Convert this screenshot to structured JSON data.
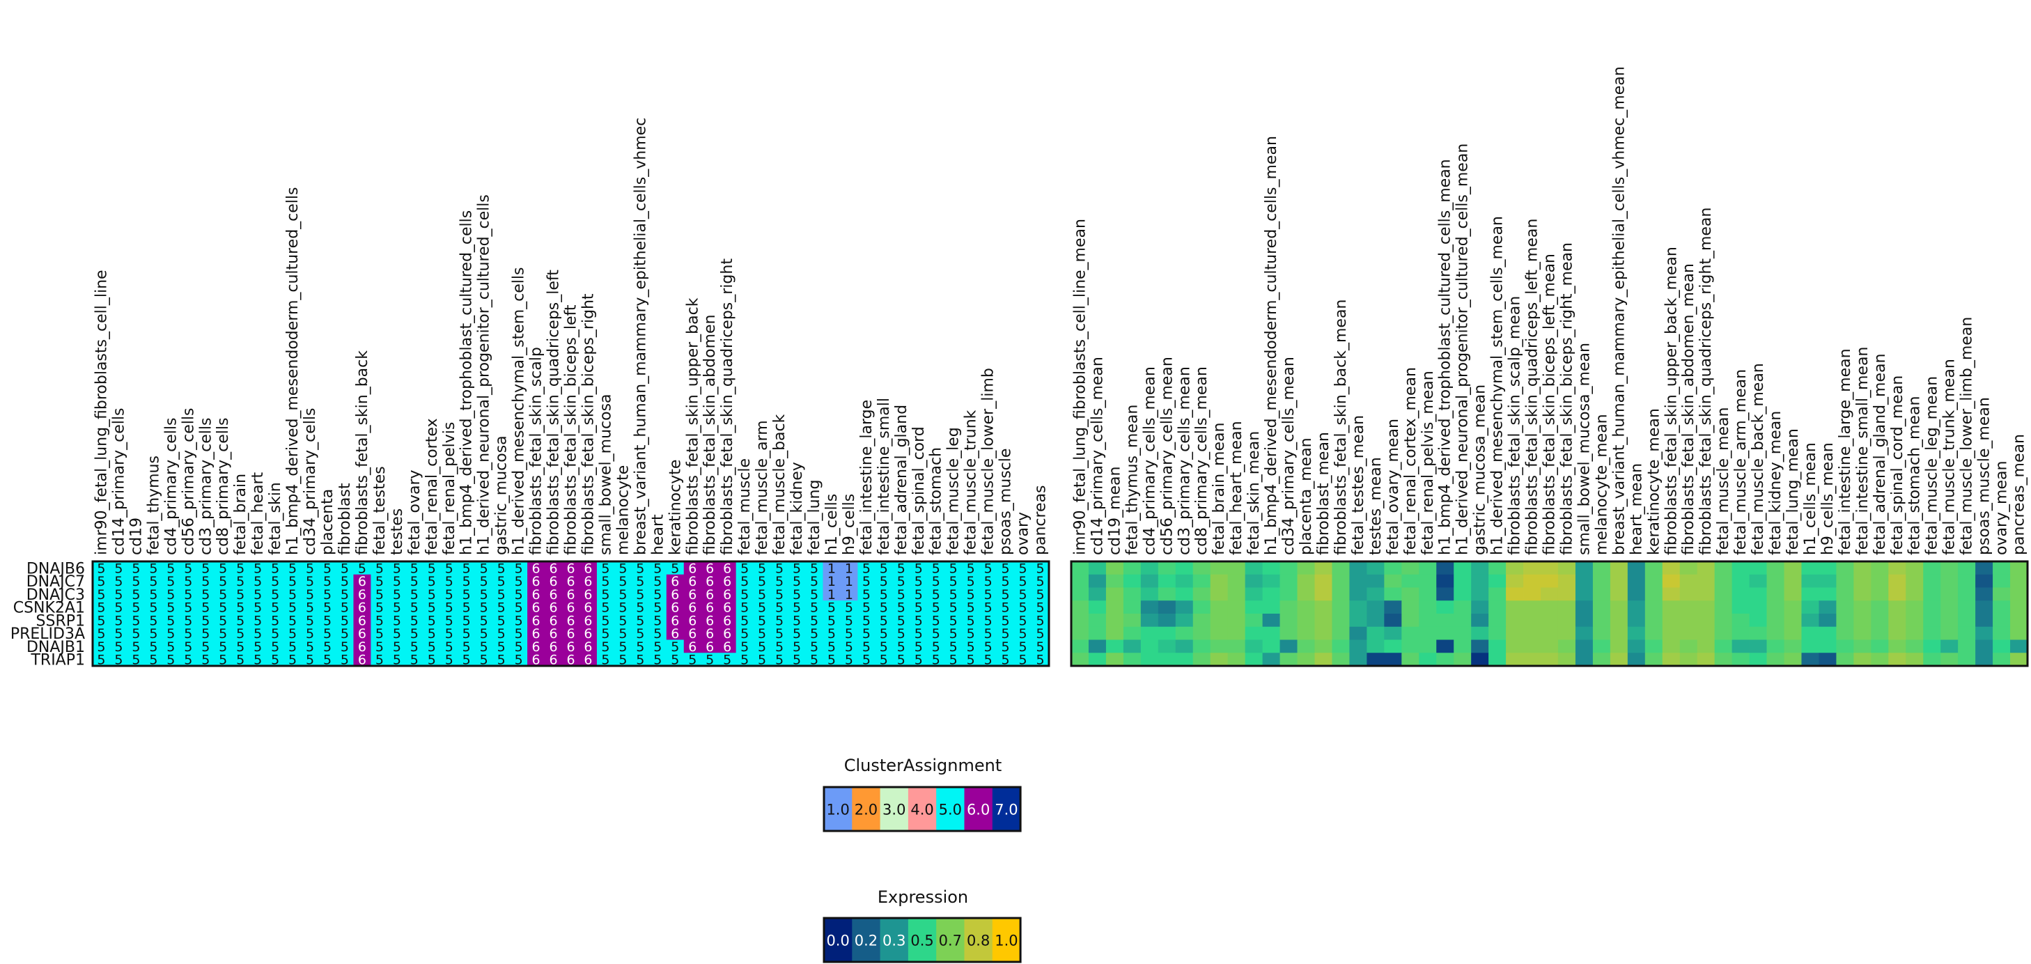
{
  "chart_data": [
    {
      "type": "heatmap",
      "title": "",
      "rows": [
        "DNAJB6",
        "DNAJC7",
        "DNAJC3",
        "CSNK2A1",
        "SSRP1",
        "PRELID3A",
        "DNAJB1",
        "TRIAP1"
      ],
      "columns": [
        "imr90_fetal_lung_fibroblasts_cell_line",
        "cd14_primary_cells",
        "cd19",
        "fetal_thymus",
        "cd4_primary_cells",
        "cd56_primary_cells",
        "cd3_primary_cells",
        "cd8_primary_cells",
        "fetal_brain",
        "fetal_heart",
        "fetal_skin",
        "h1_bmp4_derived_mesendoderm_cultured_cells",
        "cd34_primary_cells",
        "placenta",
        "fibroblast",
        "fibroblasts_fetal_skin_back",
        "fetal_testes",
        "testes",
        "fetal_ovary",
        "fetal_renal_cortex",
        "fetal_renal_pelvis",
        "h1_bmp4_derived_trophoblast_cultured_cells",
        "h1_derived_neuronal_progenitor_cultured_cells",
        "gastric_mucosa",
        "h1_derived_mesenchymal_stem_cells",
        "fibroblasts_fetal_skin_scalp",
        "fibroblasts_fetal_skin_quadriceps_left",
        "fibroblasts_fetal_skin_biceps_left",
        "fibroblasts_fetal_skin_biceps_right",
        "small_bowel_mucosa",
        "melanocyte",
        "breast_variant_human_mammary_epithelial_cells_vhmec",
        "heart",
        "keratinocyte",
        "fibroblasts_fetal_skin_upper_back",
        "fibroblasts_fetal_skin_abdomen",
        "fibroblasts_fetal_skin_quadriceps_right",
        "fetal_muscle",
        "fetal_muscle_arm",
        "fetal_muscle_back",
        "fetal_kidney",
        "fetal_lung",
        "h1_cells",
        "h9_cells",
        "fetal_intestine_large",
        "fetal_intestine_small",
        "fetal_adrenal_gland",
        "fetal_spinal_cord",
        "fetal_stomach",
        "fetal_muscle_leg",
        "fetal_muscle_trunk",
        "fetal_muscle_lower_limb",
        "psoas_muscle",
        "ovary",
        "pancreas"
      ],
      "cell_values": [
        [
          5,
          5,
          5,
          5,
          5,
          5,
          5,
          5,
          5,
          5,
          5,
          5,
          5,
          5,
          5,
          5,
          5,
          5,
          5,
          5,
          5,
          5,
          5,
          5,
          5,
          6,
          6,
          6,
          6,
          5,
          5,
          5,
          5,
          5,
          6,
          6,
          6,
          5,
          5,
          5,
          5,
          5,
          1,
          1,
          5,
          5,
          5,
          5,
          5,
          5,
          5,
          5,
          5,
          5,
          5
        ],
        [
          5,
          5,
          5,
          5,
          5,
          5,
          5,
          5,
          5,
          5,
          5,
          5,
          5,
          5,
          5,
          6,
          5,
          5,
          5,
          5,
          5,
          5,
          5,
          5,
          5,
          6,
          6,
          6,
          6,
          5,
          5,
          5,
          5,
          6,
          6,
          6,
          6,
          5,
          5,
          5,
          5,
          5,
          1,
          1,
          5,
          5,
          5,
          5,
          5,
          5,
          5,
          5,
          5,
          5,
          5
        ],
        [
          5,
          5,
          5,
          5,
          5,
          5,
          5,
          5,
          5,
          5,
          5,
          5,
          5,
          5,
          5,
          6,
          5,
          5,
          5,
          5,
          5,
          5,
          5,
          5,
          5,
          6,
          6,
          6,
          6,
          5,
          5,
          5,
          5,
          6,
          6,
          6,
          6,
          5,
          5,
          5,
          5,
          5,
          1,
          1,
          5,
          5,
          5,
          5,
          5,
          5,
          5,
          5,
          5,
          5,
          5
        ],
        [
          5,
          5,
          5,
          5,
          5,
          5,
          5,
          5,
          5,
          5,
          5,
          5,
          5,
          5,
          5,
          6,
          5,
          5,
          5,
          5,
          5,
          5,
          5,
          5,
          5,
          6,
          6,
          6,
          6,
          5,
          5,
          5,
          5,
          6,
          6,
          6,
          6,
          5,
          5,
          5,
          5,
          5,
          5,
          5,
          5,
          5,
          5,
          5,
          5,
          5,
          5,
          5,
          5,
          5,
          5
        ],
        [
          5,
          5,
          5,
          5,
          5,
          5,
          5,
          5,
          5,
          5,
          5,
          5,
          5,
          5,
          5,
          6,
          5,
          5,
          5,
          5,
          5,
          5,
          5,
          5,
          5,
          6,
          6,
          6,
          6,
          5,
          5,
          5,
          5,
          6,
          6,
          6,
          6,
          5,
          5,
          5,
          5,
          5,
          5,
          5,
          5,
          5,
          5,
          5,
          5,
          5,
          5,
          5,
          5,
          5,
          5
        ],
        [
          5,
          5,
          5,
          5,
          5,
          5,
          5,
          5,
          5,
          5,
          5,
          5,
          5,
          5,
          5,
          6,
          5,
          5,
          5,
          5,
          5,
          5,
          5,
          5,
          5,
          6,
          6,
          6,
          6,
          5,
          5,
          5,
          5,
          6,
          6,
          6,
          6,
          5,
          5,
          5,
          5,
          5,
          5,
          5,
          5,
          5,
          5,
          5,
          5,
          5,
          5,
          5,
          5,
          5,
          5
        ],
        [
          5,
          5,
          5,
          5,
          5,
          5,
          5,
          5,
          5,
          5,
          5,
          5,
          5,
          5,
          5,
          6,
          5,
          5,
          5,
          5,
          5,
          5,
          5,
          5,
          5,
          6,
          6,
          6,
          6,
          5,
          5,
          5,
          5,
          5,
          6,
          6,
          6,
          5,
          5,
          5,
          5,
          5,
          5,
          5,
          5,
          5,
          5,
          5,
          5,
          5,
          5,
          5,
          5,
          5,
          5
        ],
        [
          5,
          5,
          5,
          5,
          5,
          5,
          5,
          5,
          5,
          5,
          5,
          5,
          5,
          5,
          5,
          6,
          5,
          5,
          5,
          5,
          5,
          5,
          5,
          5,
          5,
          6,
          6,
          6,
          6,
          5,
          5,
          5,
          5,
          5,
          5,
          5,
          5,
          5,
          5,
          5,
          5,
          5,
          5,
          5,
          5,
          5,
          5,
          5,
          5,
          5,
          5,
          5,
          5,
          5,
          5
        ]
      ],
      "color_key": "ClusterAssignment"
    },
    {
      "type": "heatmap",
      "title": "",
      "rows": [
        "DNAJB6",
        "DNAJC7",
        "DNAJC3",
        "CSNK2A1",
        "SSRP1",
        "PRELID3A",
        "DNAJB1",
        "TRIAP1"
      ],
      "columns": [
        "imr90_fetal_lung_fibroblasts_cell_line_mean",
        "cd14_primary_cells_mean",
        "cd19_mean",
        "fetal_thymus_mean",
        "cd4_primary_cells_mean",
        "cd56_primary_cells_mean",
        "cd3_primary_cells_mean",
        "cd8_primary_cells_mean",
        "fetal_brain_mean",
        "fetal_heart_mean",
        "fetal_skin_mean",
        "h1_bmp4_derived_mesendoderm_cultured_cells_mean",
        "cd34_primary_cells_mean",
        "placenta_mean",
        "fibroblast_mean",
        "fibroblasts_fetal_skin_back_mean",
        "fetal_testes_mean",
        "testes_mean",
        "fetal_ovary_mean",
        "fetal_renal_cortex_mean",
        "fetal_renal_pelvis_mean",
        "h1_bmp4_derived_trophoblast_cultured_cells_mean",
        "h1_derived_neuronal_progenitor_cultured_cells_mean",
        "gastric_mucosa_mean",
        "h1_derived_mesenchymal_stem_cells_mean",
        "fibroblasts_fetal_skin_scalp_mean",
        "fibroblasts_fetal_skin_quadriceps_left_mean",
        "fibroblasts_fetal_skin_biceps_left_mean",
        "fibroblasts_fetal_skin_biceps_right_mean",
        "small_bowel_mucosa_mean",
        "melanocyte_mean",
        "breast_variant_human_mammary_epithelial_cells_vhmec_mean",
        "heart_mean",
        "keratinocyte_mean",
        "fibroblasts_fetal_skin_upper_back_mean",
        "fibroblasts_fetal_skin_abdomen_mean",
        "fibroblasts_fetal_skin_quadriceps_right_mean",
        "fetal_muscle_mean",
        "fetal_muscle_arm_mean",
        "fetal_muscle_back_mean",
        "fetal_kidney_mean",
        "fetal_lung_mean",
        "h1_cells_mean",
        "h9_cells_mean",
        "fetal_intestine_large_mean",
        "fetal_intestine_small_mean",
        "fetal_adrenal_gland_mean",
        "fetal_spinal_cord_mean",
        "fetal_stomach_mean",
        "fetal_muscle_leg_mean",
        "fetal_muscle_trunk_mean",
        "fetal_muscle_lower_limb_mean",
        "psoas_muscle_mean",
        "ovary_mean",
        "pancreas_mean"
      ],
      "cell_values": [
        [
          0.55,
          0.45,
          0.65,
          0.55,
          0.45,
          0.55,
          0.5,
          0.6,
          0.65,
          0.65,
          0.45,
          0.5,
          0.55,
          0.65,
          0.75,
          0.6,
          0.35,
          0.4,
          0.55,
          0.6,
          0.55,
          0.15,
          0.5,
          0.4,
          0.55,
          0.75,
          0.8,
          0.8,
          0.75,
          0.35,
          0.6,
          0.75,
          0.3,
          0.6,
          0.8,
          0.7,
          0.75,
          0.6,
          0.5,
          0.5,
          0.6,
          0.7,
          0.5,
          0.5,
          0.6,
          0.7,
          0.65,
          0.75,
          0.7,
          0.55,
          0.6,
          0.55,
          0.2,
          0.55,
          0.65
        ],
        [
          0.55,
          0.35,
          0.6,
          0.5,
          0.4,
          0.5,
          0.45,
          0.55,
          0.7,
          0.65,
          0.4,
          0.45,
          0.55,
          0.7,
          0.8,
          0.6,
          0.35,
          0.35,
          0.6,
          0.55,
          0.55,
          0.1,
          0.5,
          0.4,
          0.5,
          0.8,
          0.85,
          0.85,
          0.8,
          0.35,
          0.6,
          0.75,
          0.3,
          0.6,
          0.85,
          0.75,
          0.75,
          0.6,
          0.5,
          0.45,
          0.6,
          0.7,
          0.45,
          0.45,
          0.6,
          0.7,
          0.65,
          0.8,
          0.7,
          0.55,
          0.6,
          0.55,
          0.15,
          0.55,
          0.65
        ],
        [
          0.55,
          0.4,
          0.65,
          0.55,
          0.45,
          0.55,
          0.5,
          0.6,
          0.7,
          0.65,
          0.45,
          0.5,
          0.55,
          0.7,
          0.8,
          0.6,
          0.35,
          0.4,
          0.55,
          0.6,
          0.55,
          0.15,
          0.5,
          0.4,
          0.55,
          0.85,
          0.85,
          0.8,
          0.8,
          0.35,
          0.6,
          0.75,
          0.3,
          0.6,
          0.8,
          0.75,
          0.75,
          0.6,
          0.5,
          0.5,
          0.6,
          0.7,
          0.5,
          0.5,
          0.6,
          0.7,
          0.65,
          0.8,
          0.7,
          0.55,
          0.6,
          0.55,
          0.2,
          0.6,
          0.65
        ],
        [
          0.6,
          0.5,
          0.65,
          0.55,
          0.3,
          0.25,
          0.35,
          0.55,
          0.65,
          0.65,
          0.5,
          0.5,
          0.6,
          0.65,
          0.7,
          0.6,
          0.4,
          0.35,
          0.2,
          0.6,
          0.55,
          0.5,
          0.55,
          0.35,
          0.55,
          0.7,
          0.7,
          0.7,
          0.7,
          0.3,
          0.6,
          0.7,
          0.35,
          0.6,
          0.7,
          0.7,
          0.7,
          0.6,
          0.5,
          0.5,
          0.6,
          0.65,
          0.45,
          0.35,
          0.6,
          0.65,
          0.6,
          0.7,
          0.65,
          0.55,
          0.6,
          0.55,
          0.25,
          0.55,
          0.65
        ],
        [
          0.6,
          0.55,
          0.65,
          0.6,
          0.35,
          0.3,
          0.4,
          0.6,
          0.65,
          0.65,
          0.55,
          0.3,
          0.6,
          0.65,
          0.7,
          0.6,
          0.4,
          0.35,
          0.15,
          0.6,
          0.55,
          0.55,
          0.55,
          0.3,
          0.55,
          0.7,
          0.7,
          0.7,
          0.7,
          0.3,
          0.6,
          0.7,
          0.35,
          0.6,
          0.7,
          0.7,
          0.7,
          0.6,
          0.55,
          0.5,
          0.6,
          0.65,
          0.4,
          0.3,
          0.6,
          0.65,
          0.6,
          0.7,
          0.65,
          0.55,
          0.6,
          0.55,
          0.25,
          0.55,
          0.65
        ],
        [
          0.6,
          0.55,
          0.65,
          0.55,
          0.5,
          0.5,
          0.55,
          0.6,
          0.65,
          0.65,
          0.5,
          0.5,
          0.6,
          0.65,
          0.7,
          0.6,
          0.3,
          0.45,
          0.4,
          0.55,
          0.55,
          0.55,
          0.55,
          0.45,
          0.55,
          0.7,
          0.7,
          0.7,
          0.7,
          0.35,
          0.6,
          0.7,
          0.4,
          0.6,
          0.7,
          0.7,
          0.7,
          0.6,
          0.55,
          0.55,
          0.6,
          0.65,
          0.5,
          0.5,
          0.6,
          0.65,
          0.6,
          0.7,
          0.65,
          0.55,
          0.6,
          0.55,
          0.35,
          0.55,
          0.65
        ],
        [
          0.55,
          0.3,
          0.5,
          0.4,
          0.5,
          0.45,
          0.4,
          0.55,
          0.6,
          0.6,
          0.45,
          0.5,
          0.3,
          0.6,
          0.65,
          0.55,
          0.35,
          0.45,
          0.5,
          0.55,
          0.55,
          0.1,
          0.55,
          0.2,
          0.5,
          0.7,
          0.7,
          0.7,
          0.65,
          0.3,
          0.55,
          0.7,
          0.35,
          0.55,
          0.7,
          0.65,
          0.7,
          0.55,
          0.4,
          0.4,
          0.55,
          0.6,
          0.5,
          0.5,
          0.55,
          0.6,
          0.55,
          0.65,
          0.6,
          0.5,
          0.4,
          0.55,
          0.3,
          0.5,
          0.35
        ],
        [
          0.6,
          0.5,
          0.65,
          0.55,
          0.5,
          0.5,
          0.5,
          0.6,
          0.7,
          0.65,
          0.5,
          0.35,
          0.6,
          0.65,
          0.75,
          0.6,
          0.35,
          0.1,
          0.1,
          0.6,
          0.5,
          0.55,
          0.6,
          0.05,
          0.5,
          0.75,
          0.75,
          0.75,
          0.7,
          0.3,
          0.6,
          0.75,
          0.3,
          0.6,
          0.75,
          0.7,
          0.75,
          0.6,
          0.55,
          0.5,
          0.6,
          0.65,
          0.2,
          0.15,
          0.6,
          0.7,
          0.65,
          0.75,
          0.7,
          0.55,
          0.6,
          0.55,
          0.3,
          0.55,
          0.7
        ]
      ],
      "color_key": "Expression"
    }
  ],
  "legends": {
    "cluster": {
      "title": "ClusterAssignment",
      "labels": [
        "1.0",
        "2.0",
        "3.0",
        "4.0",
        "5.0",
        "6.0",
        "7.0"
      ],
      "colors": [
        "#6c9bf7",
        "#ff9933",
        "#ccf5c7",
        "#ff9999",
        "#00f5f5",
        "#9a009a",
        "#002d99"
      ]
    },
    "expression": {
      "title": "Expression",
      "labels": [
        "0.0",
        "0.2",
        "0.3",
        "0.5",
        "0.7",
        "0.8",
        "1.0"
      ],
      "colors": [
        "#00207a",
        "#155d88",
        "#1e9592",
        "#2ed68a",
        "#7dd155",
        "#c2c83a",
        "#ffc800"
      ]
    }
  }
}
